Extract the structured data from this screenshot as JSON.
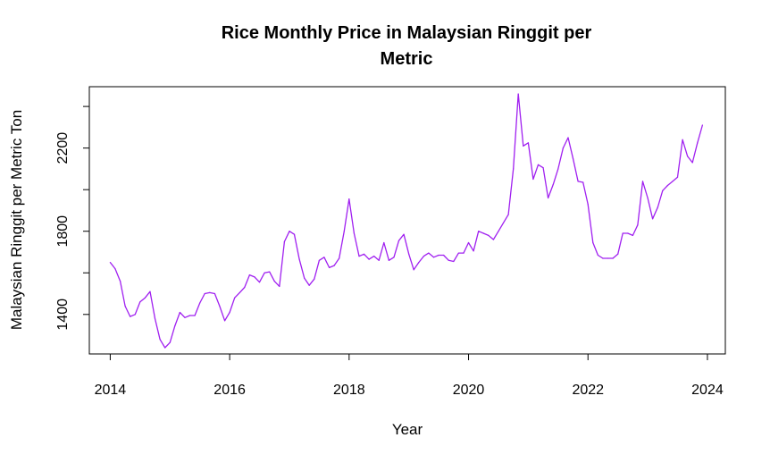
{
  "colors": {
    "series": "#a020f0",
    "axis": "#000000"
  },
  "chart_data": {
    "type": "line",
    "title_lines": [
      "Rice Monthly Price in Malaysian Ringgit per",
      "Metric"
    ],
    "xlabel": "Year",
    "ylabel": "Malaysian Ringgit per Metric Ton",
    "xlim": [
      2013.65,
      2024.3
    ],
    "ylim": [
      1210,
      2495
    ],
    "x_ticks": [
      2014,
      2016,
      2018,
      2020,
      2022,
      2024
    ],
    "x_tick_labels": [
      "2014",
      "2016",
      "2018",
      "2020",
      "2022",
      "2024"
    ],
    "y_ticks": [
      1400,
      1600,
      1800,
      2000,
      2200,
      2400
    ],
    "y_tick_labels": [
      "1400",
      "",
      "1800",
      "",
      "2200",
      ""
    ],
    "grid": false,
    "legend": "none",
    "series": [
      {
        "x": [
          2014.0,
          2014.083,
          2014.167,
          2014.25,
          2014.333,
          2014.417,
          2014.5,
          2014.583,
          2014.667,
          2014.75,
          2014.833,
          2014.917,
          2015.0,
          2015.083,
          2015.167,
          2015.25,
          2015.333,
          2015.417,
          2015.5,
          2015.583,
          2015.667,
          2015.75,
          2015.833,
          2015.917,
          2016.0,
          2016.083,
          2016.167,
          2016.25,
          2016.333,
          2016.417,
          2016.5,
          2016.583,
          2016.667,
          2016.75,
          2016.833,
          2016.917,
          2017.0,
          2017.083,
          2017.167,
          2017.25,
          2017.333,
          2017.417,
          2017.5,
          2017.583,
          2017.667,
          2017.75,
          2017.833,
          2017.917,
          2018.0,
          2018.083,
          2018.167,
          2018.25,
          2018.333,
          2018.417,
          2018.5,
          2018.583,
          2018.667,
          2018.75,
          2018.833,
          2018.917,
          2019.0,
          2019.083,
          2019.167,
          2019.25,
          2019.333,
          2019.417,
          2019.5,
          2019.583,
          2019.667,
          2019.75,
          2019.833,
          2019.917,
          2020.0,
          2020.083,
          2020.167,
          2020.25,
          2020.333,
          2020.417,
          2020.5,
          2020.583,
          2020.667,
          2020.75,
          2020.833,
          2020.917,
          2021.0,
          2021.083,
          2021.167,
          2021.25,
          2021.333,
          2021.417,
          2021.5,
          2021.583,
          2021.667,
          2021.75,
          2021.833,
          2021.917,
          2022.0,
          2022.083,
          2022.167,
          2022.25,
          2022.333,
          2022.417,
          2022.5,
          2022.583,
          2022.667,
          2022.75,
          2022.833,
          2022.917,
          2023.0,
          2023.083,
          2023.167,
          2023.25,
          2023.333,
          2023.417,
          2023.5,
          2023.583,
          2023.667,
          2023.75,
          2023.833,
          2023.917
        ],
        "values": [
          1650,
          1620,
          1560,
          1440,
          1390,
          1400,
          1460,
          1480,
          1510,
          1380,
          1280,
          1240,
          1265,
          1345,
          1410,
          1385,
          1395,
          1395,
          1455,
          1500,
          1505,
          1500,
          1440,
          1370,
          1410,
          1480,
          1505,
          1530,
          1590,
          1580,
          1555,
          1600,
          1605,
          1560,
          1535,
          1750,
          1800,
          1785,
          1665,
          1575,
          1540,
          1570,
          1660,
          1675,
          1625,
          1635,
          1670,
          1800,
          1955,
          1790,
          1680,
          1690,
          1665,
          1680,
          1660,
          1745,
          1660,
          1675,
          1755,
          1785,
          1690,
          1615,
          1650,
          1680,
          1695,
          1675,
          1685,
          1685,
          1660,
          1655,
          1695,
          1695,
          1745,
          1705,
          1800,
          1790,
          1780,
          1760,
          1800,
          1840,
          1880,
          2100,
          2460,
          2210,
          2225,
          2050,
          2120,
          2105,
          1960,
          2025,
          2100,
          2200,
          2250,
          2150,
          2040,
          2035,
          1930,
          1745,
          1685,
          1670,
          1670,
          1670,
          1690,
          1790,
          1790,
          1780,
          1830,
          2040,
          1960,
          1860,
          1915,
          1995,
          2020,
          2040,
          2060,
          2240,
          2160,
          2130,
          2225,
          2310
        ]
      }
    ]
  }
}
